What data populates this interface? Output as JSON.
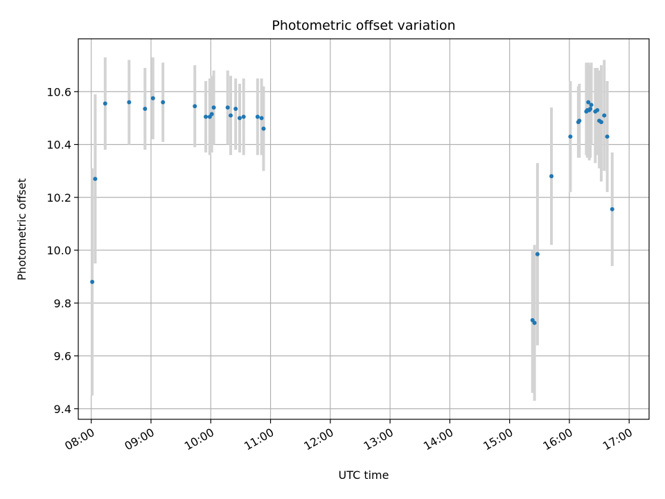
{
  "chart_data": {
    "type": "scatter",
    "title": "Photometric offset variation",
    "xlabel": "UTC time",
    "ylabel": "Photometric offset",
    "xlim": [
      "07:47",
      "17:20"
    ],
    "ylim": [
      9.36,
      10.8
    ],
    "grid": true,
    "xticks": [
      "08:00",
      "09:00",
      "10:00",
      "11:00",
      "12:00",
      "13:00",
      "14:00",
      "15:00",
      "16:00",
      "17:00"
    ],
    "yticks": [
      "9.4",
      "9.6",
      "9.8",
      "10.0",
      "10.2",
      "10.4",
      "10.6"
    ],
    "marker_color": "#1f77b4",
    "errorbar_color": "#d3d3d3",
    "points": [
      {
        "t": "08:01",
        "y": 9.88,
        "lo": 9.45,
        "hi": 10.31
      },
      {
        "t": "08:04",
        "y": 10.27,
        "lo": 9.95,
        "hi": 10.59
      },
      {
        "t": "08:14",
        "y": 10.555,
        "lo": 10.38,
        "hi": 10.73
      },
      {
        "t": "08:38",
        "y": 10.56,
        "lo": 10.4,
        "hi": 10.72
      },
      {
        "t": "08:54",
        "y": 10.535,
        "lo": 10.38,
        "hi": 10.69
      },
      {
        "t": "09:02",
        "y": 10.575,
        "lo": 10.42,
        "hi": 10.73
      },
      {
        "t": "09:12",
        "y": 10.56,
        "lo": 10.41,
        "hi": 10.71
      },
      {
        "t": "09:44",
        "y": 10.545,
        "lo": 10.39,
        "hi": 10.7
      },
      {
        "t": "09:55",
        "y": 10.505,
        "lo": 10.37,
        "hi": 10.64
      },
      {
        "t": "09:59",
        "y": 10.505,
        "lo": 10.36,
        "hi": 10.65
      },
      {
        "t": "10:01",
        "y": 10.515,
        "lo": 10.37,
        "hi": 10.66
      },
      {
        "t": "10:03",
        "y": 10.54,
        "lo": 10.4,
        "hi": 10.68
      },
      {
        "t": "10:17",
        "y": 10.54,
        "lo": 10.4,
        "hi": 10.68
      },
      {
        "t": "10:20",
        "y": 10.51,
        "lo": 10.36,
        "hi": 10.66
      },
      {
        "t": "10:25",
        "y": 10.535,
        "lo": 10.38,
        "hi": 10.65
      },
      {
        "t": "10:29",
        "y": 10.5,
        "lo": 10.37,
        "hi": 10.63
      },
      {
        "t": "10:33",
        "y": 10.505,
        "lo": 10.36,
        "hi": 10.65
      },
      {
        "t": "10:47",
        "y": 10.505,
        "lo": 10.36,
        "hi": 10.65
      },
      {
        "t": "10:51",
        "y": 10.5,
        "lo": 10.36,
        "hi": 10.65
      },
      {
        "t": "10:53",
        "y": 10.46,
        "lo": 10.3,
        "hi": 10.62
      },
      {
        "t": "15:23",
        "y": 9.735,
        "lo": 9.46,
        "hi": 10.0
      },
      {
        "t": "15:25",
        "y": 9.725,
        "lo": 9.43,
        "hi": 10.02
      },
      {
        "t": "15:28",
        "y": 9.985,
        "lo": 9.64,
        "hi": 10.33
      },
      {
        "t": "15:42",
        "y": 10.28,
        "lo": 10.02,
        "hi": 10.54
      },
      {
        "t": "16:01",
        "y": 10.43,
        "lo": 10.22,
        "hi": 10.64
      },
      {
        "t": "16:09",
        "y": 10.485,
        "lo": 10.35,
        "hi": 10.62
      },
      {
        "t": "16:10",
        "y": 10.49,
        "lo": 10.35,
        "hi": 10.63
      },
      {
        "t": "16:17",
        "y": 10.525,
        "lo": 10.36,
        "hi": 10.71
      },
      {
        "t": "16:18",
        "y": 10.53,
        "lo": 10.35,
        "hi": 10.7
      },
      {
        "t": "16:19",
        "y": 10.56,
        "lo": 10.39,
        "hi": 10.71
      },
      {
        "t": "16:20",
        "y": 10.53,
        "lo": 10.34,
        "hi": 10.67
      },
      {
        "t": "16:21",
        "y": 10.535,
        "lo": 10.35,
        "hi": 10.7
      },
      {
        "t": "16:22",
        "y": 10.55,
        "lo": 10.4,
        "hi": 10.71
      },
      {
        "t": "16:26",
        "y": 10.525,
        "lo": 10.33,
        "hi": 10.69
      },
      {
        "t": "16:28",
        "y": 10.53,
        "lo": 10.36,
        "hi": 10.69
      },
      {
        "t": "16:30",
        "y": 10.49,
        "lo": 10.31,
        "hi": 10.68
      },
      {
        "t": "16:32",
        "y": 10.485,
        "lo": 10.26,
        "hi": 10.7
      },
      {
        "t": "16:35",
        "y": 10.51,
        "lo": 10.3,
        "hi": 10.72
      },
      {
        "t": "16:38",
        "y": 10.43,
        "lo": 10.22,
        "hi": 10.64
      },
      {
        "t": "16:43",
        "y": 10.155,
        "lo": 9.94,
        "hi": 10.37
      }
    ]
  }
}
